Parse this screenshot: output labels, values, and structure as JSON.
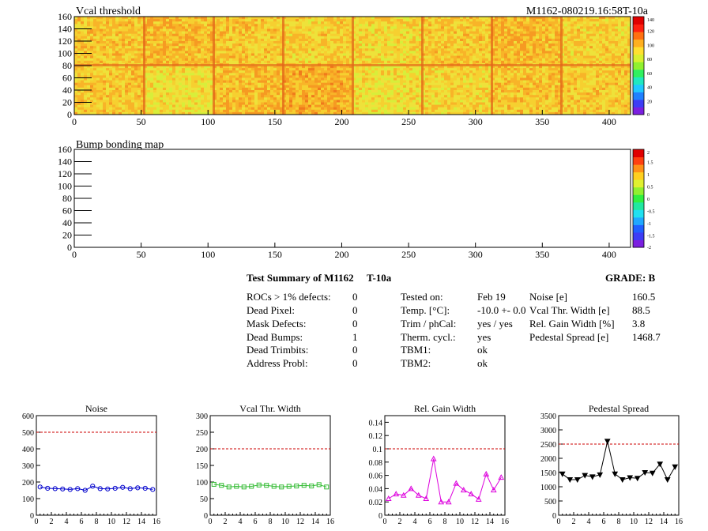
{
  "top_map": {
    "title": "Vcal threshold",
    "run_label": "M1162-080219.16:58T-10a",
    "x_range": [
      0,
      416
    ],
    "y_range": [
      0,
      160
    ],
    "x_ticks": [
      "0",
      "50",
      "100",
      "150",
      "200",
      "250",
      "300",
      "350",
      "400"
    ],
    "y_ticks": [
      "0",
      "20",
      "40",
      "60",
      "80",
      "100",
      "120",
      "140",
      "160"
    ],
    "colorbar_ticks": [
      "0",
      "20",
      "40",
      "60",
      "80",
      "100",
      "120",
      "140"
    ]
  },
  "bump_map": {
    "title": "Bump bonding map",
    "x_range": [
      0,
      416
    ],
    "y_range": [
      0,
      160
    ],
    "x_ticks": [
      "0",
      "50",
      "100",
      "150",
      "200",
      "250",
      "300",
      "350",
      "400"
    ],
    "y_ticks": [
      "0",
      "20",
      "40",
      "60",
      "80",
      "100",
      "120",
      "140",
      "160"
    ],
    "colorbar_ticks": [
      "-2",
      "-1.5",
      "-1",
      "-0.5",
      "0",
      "0.5",
      "1",
      "1.5",
      "2"
    ]
  },
  "summary": {
    "title": "Test Summary of M1162",
    "temp_label": "T-10a",
    "grade": "GRADE:  B",
    "left_items": [
      {
        "label": "ROCs > 1% defects:",
        "value": "0"
      },
      {
        "label": "Dead Pixel:",
        "value": "0"
      },
      {
        "label": "Mask Defects:",
        "value": "0"
      },
      {
        "label": "Dead Bumps:",
        "value": "1"
      },
      {
        "label": "Dead Trimbits:",
        "value": "0"
      },
      {
        "label": "Address Probl:",
        "value": "0"
      }
    ],
    "mid_items": [
      {
        "label": "Tested on:",
        "value": "Feb 19"
      },
      {
        "label": "Temp. [°C]:",
        "value": "-10.0 +- 0.0"
      },
      {
        "label": "Trim / phCal:",
        "value": "yes / yes"
      },
      {
        "label": "Therm. cycl.:",
        "value": "yes"
      },
      {
        "label": "TBM1:",
        "value": "ok"
      },
      {
        "label": "TBM2:",
        "value": "ok"
      }
    ],
    "right_items": [
      {
        "label": "Noise [e]",
        "value": "160.5"
      },
      {
        "label": "Vcal Thr. Width [e]",
        "value": "88.5"
      },
      {
        "label": "Rel. Gain Width [%]",
        "value": "3.8"
      },
      {
        "label": "Pedestal Spread [e]",
        "value": "1468.7"
      }
    ]
  },
  "chart_data": [
    {
      "type": "line",
      "title": "Noise",
      "color": "#0000cc",
      "marker": "circle",
      "xlim": [
        0,
        16
      ],
      "ylim": [
        0,
        600
      ],
      "x_ticks": [
        "0",
        "2",
        "4",
        "6",
        "8",
        "10",
        "12",
        "14",
        "16"
      ],
      "y_ticks": [
        "0",
        "100",
        "200",
        "300",
        "400",
        "500",
        "600"
      ],
      "threshold": 500,
      "x": [
        0.5,
        1.5,
        2.5,
        3.5,
        4.5,
        5.5,
        6.5,
        7.5,
        8.5,
        9.5,
        10.5,
        11.5,
        12.5,
        13.5,
        14.5,
        15.5
      ],
      "values": [
        170,
        162,
        160,
        158,
        155,
        160,
        150,
        175,
        160,
        158,
        162,
        168,
        160,
        165,
        162,
        155
      ]
    },
    {
      "type": "line",
      "title": "Vcal Thr. Width",
      "color": "#33bb33",
      "marker": "square",
      "xlim": [
        0,
        16
      ],
      "ylim": [
        0,
        300
      ],
      "x_ticks": [
        "0",
        "2",
        "4",
        "6",
        "8",
        "10",
        "12",
        "14",
        "16"
      ],
      "y_ticks": [
        "0",
        "50",
        "100",
        "150",
        "200",
        "250",
        "300"
      ],
      "threshold": 200,
      "x": [
        0.5,
        1.5,
        2.5,
        3.5,
        4.5,
        5.5,
        6.5,
        7.5,
        8.5,
        9.5,
        10.5,
        11.5,
        12.5,
        13.5,
        14.5,
        15.5
      ],
      "values": [
        93,
        90,
        85,
        87,
        85,
        87,
        91,
        90,
        87,
        85,
        87,
        88,
        90,
        88,
        92,
        85
      ]
    },
    {
      "type": "line",
      "title": "Rel. Gain Width",
      "color": "#dd00dd",
      "marker": "triangle-up",
      "xlim": [
        0,
        16
      ],
      "ylim": [
        0,
        0.15
      ],
      "x_ticks": [
        "0",
        "2",
        "4",
        "6",
        "8",
        "10",
        "12",
        "14",
        "16"
      ],
      "y_ticks": [
        "0",
        "0.02",
        "0.04",
        "0.06",
        "0.08",
        "0.1",
        "0.12",
        "0.14"
      ],
      "threshold": 0.1,
      "x": [
        0.5,
        1.5,
        2.5,
        3.5,
        4.5,
        5.5,
        6.5,
        7.5,
        8.5,
        9.5,
        10.5,
        11.5,
        12.5,
        13.5,
        14.5,
        15.5
      ],
      "values": [
        0.025,
        0.032,
        0.03,
        0.04,
        0.03,
        0.025,
        0.085,
        0.02,
        0.02,
        0.048,
        0.038,
        0.032,
        0.024,
        0.062,
        0.038,
        0.057
      ]
    },
    {
      "type": "line",
      "title": "Pedestal Spread",
      "color": "#000000",
      "marker": "triangle-down",
      "xlim": [
        0,
        16
      ],
      "ylim": [
        0,
        3500
      ],
      "x_ticks": [
        "0",
        "2",
        "4",
        "6",
        "8",
        "10",
        "12",
        "14",
        "16"
      ],
      "y_ticks": [
        "0",
        "500",
        "1000",
        "1500",
        "2000",
        "2500",
        "3000",
        "3500"
      ],
      "threshold": 2500,
      "x": [
        0.5,
        1.5,
        2.5,
        3.5,
        4.5,
        5.5,
        6.5,
        7.5,
        8.5,
        9.5,
        10.5,
        11.5,
        12.5,
        13.5,
        14.5,
        15.5
      ],
      "values": [
        1450,
        1250,
        1250,
        1400,
        1350,
        1420,
        2600,
        1450,
        1250,
        1320,
        1300,
        1500,
        1480,
        1800,
        1250,
        1700
      ]
    }
  ]
}
